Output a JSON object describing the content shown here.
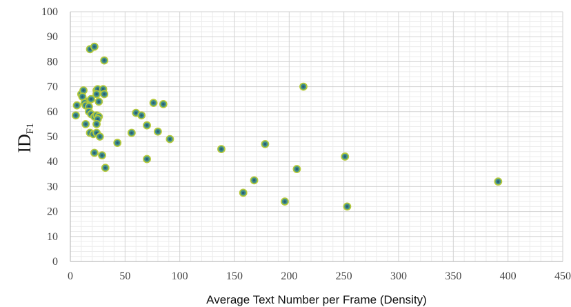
{
  "chart_data": {
    "type": "scatter",
    "title": "",
    "xlabel": "Average Text Number per Frame (Density)",
    "ylabel": {
      "main": "ID",
      "subscript": "F1"
    },
    "xlim": [
      0,
      450
    ],
    "ylim": [
      0,
      100
    ],
    "x_ticks": [
      "0",
      "50",
      "100",
      "150",
      "200",
      "250",
      "300",
      "350",
      "400",
      "450"
    ],
    "y_ticks": [
      "0",
      "10",
      "20",
      "30",
      "40",
      "50",
      "60",
      "70",
      "80",
      "90",
      "100"
    ],
    "major_grid": true,
    "minor_grid": true,
    "marker": {
      "fill": "#3F8F8A",
      "edge": "#B5C93B",
      "center": "#2B5D75"
    },
    "grid_colors": {
      "major": "#d2d2d2",
      "minor": "#ececec"
    },
    "series": [
      {
        "points": [
          [
            18,
            85
          ],
          [
            22,
            86
          ],
          [
            31,
            80.5
          ],
          [
            10,
            67
          ],
          [
            12,
            68.5
          ],
          [
            11,
            66
          ],
          [
            15,
            64
          ],
          [
            13,
            63.5
          ],
          [
            19,
            65
          ],
          [
            24,
            68.5
          ],
          [
            25,
            69
          ],
          [
            24,
            67
          ],
          [
            30,
            69
          ],
          [
            31,
            67
          ],
          [
            26,
            64
          ],
          [
            6,
            62.5
          ],
          [
            14,
            62.5
          ],
          [
            17,
            62
          ],
          [
            17,
            60
          ],
          [
            19,
            59
          ],
          [
            22,
            58
          ],
          [
            24,
            58.5
          ],
          [
            26,
            58
          ],
          [
            25,
            57
          ],
          [
            5,
            58.5
          ],
          [
            14,
            55
          ],
          [
            24,
            55
          ],
          [
            18,
            51.5
          ],
          [
            21,
            51
          ],
          [
            24,
            51.5
          ],
          [
            27,
            50
          ],
          [
            22,
            43.5
          ],
          [
            29,
            42.5
          ],
          [
            32,
            37.5
          ],
          [
            43,
            47.5
          ],
          [
            56,
            51.5
          ],
          [
            60,
            59.5
          ],
          [
            65,
            58.5
          ],
          [
            70,
            54.5
          ],
          [
            76,
            63.5
          ],
          [
            80,
            52
          ],
          [
            85,
            63
          ],
          [
            91,
            49
          ],
          [
            70,
            41
          ],
          [
            138,
            45
          ],
          [
            158,
            27.5
          ],
          [
            168,
            32.5
          ],
          [
            178,
            47
          ],
          [
            196,
            24
          ],
          [
            207,
            37
          ],
          [
            213,
            70
          ],
          [
            251,
            42
          ],
          [
            253,
            22
          ],
          [
            391,
            32
          ]
        ]
      }
    ]
  }
}
